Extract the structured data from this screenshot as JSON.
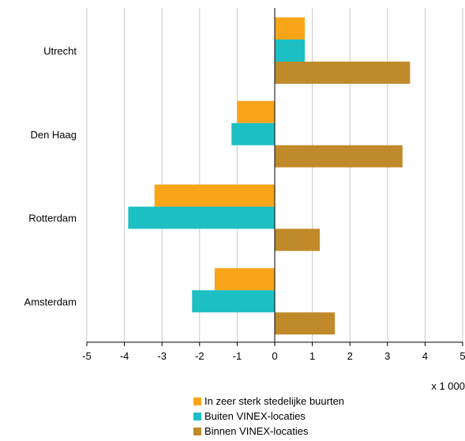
{
  "chart_data": {
    "type": "bar",
    "orientation": "horizontal",
    "categories": [
      "Utrecht",
      "Den Haag",
      "Rotterdam",
      "Amsterdam"
    ],
    "series": [
      {
        "name": "In zeer sterk stedelijke buurten",
        "color": "#F9A51A",
        "values": [
          0.8,
          -1.0,
          -3.2,
          -1.6
        ]
      },
      {
        "name": "Buiten VINEX-locaties",
        "color": "#1CBFC4",
        "values": [
          0.8,
          -1.15,
          -3.9,
          -2.2
        ]
      },
      {
        "name": "Binnen VINEX-locaties",
        "color": "#C08A2A",
        "values": [
          3.6,
          3.4,
          1.2,
          1.6
        ]
      }
    ],
    "xlim": [
      -5,
      5
    ],
    "xticks": [
      "-5",
      "-4",
      "-3",
      "-2",
      "-1",
      "0",
      "1",
      "2",
      "3",
      "4",
      "5"
    ],
    "x_unit": "x 1 000",
    "grid": "vertical",
    "legend_position": "bottom"
  }
}
